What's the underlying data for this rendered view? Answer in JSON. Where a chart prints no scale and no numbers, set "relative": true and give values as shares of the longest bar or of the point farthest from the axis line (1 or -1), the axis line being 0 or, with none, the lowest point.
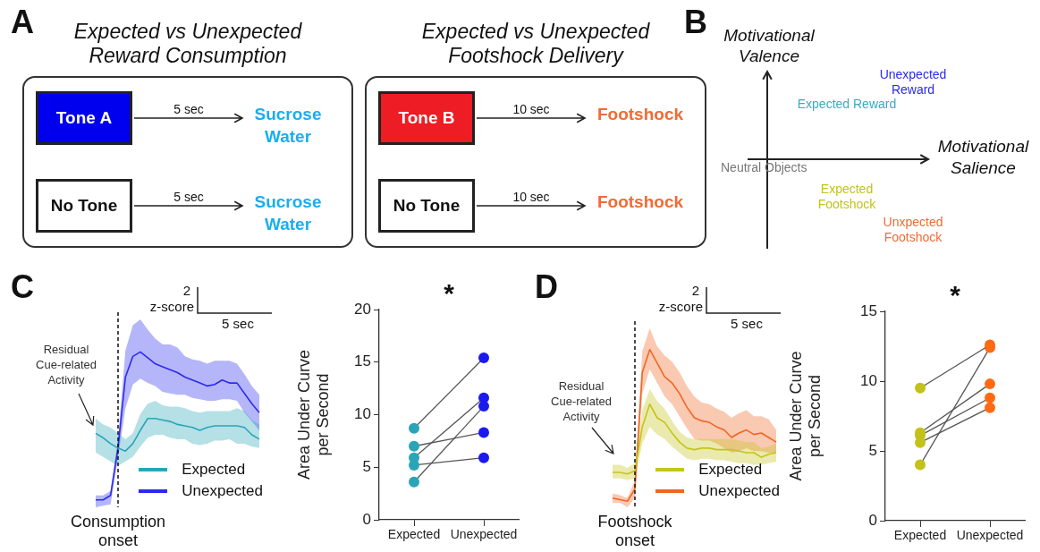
{
  "chart_data": [
    {
      "type": "other",
      "title": "Expected vs Unexpected Reward Consumption",
      "colors": [
        "#0000ee",
        "#ffffff"
      ],
      "annotations": [
        "A",
        "Tone A",
        "5 sec",
        "Sucrose Water",
        "No Tone",
        "5 sec",
        "Sucrose Water"
      ]
    },
    {
      "type": "other",
      "title": "Expected vs Unexpected Footshock Delivery",
      "colors": [
        "#ee1c24",
        "#ffffff"
      ],
      "annotations": [
        "Tone B",
        "10 sec",
        "Footshock",
        "No Tone",
        "10 sec",
        "Footshock"
      ]
    },
    {
      "type": "other",
      "xlabel": "Motivational Salience",
      "ylabel": "Motivational Valence",
      "annotations": [
        "B",
        "Unexpected Reward",
        "Expected Reward",
        "Neutral Objects",
        "Expected Footshock",
        "Unxpected Footshock"
      ]
    },
    {
      "type": "line",
      "relative": true,
      "legend": "bottom right",
      "categories": [
        null,
        null,
        null,
        null,
        null,
        null,
        null,
        null,
        null,
        null,
        null,
        null,
        null,
        null,
        null,
        null,
        null,
        null,
        null,
        null,
        null,
        null,
        null
      ],
      "annotations": [
        "C",
        "2",
        "z-score",
        "5 sec",
        "Residual Cue-related Activity",
        "Consumption onset"
      ],
      "series": [
        {
          "name": "Expected",
          "color": "#2aa5b8",
          "values": [
            0.45,
            0.42,
            0.38,
            0.35,
            0.33,
            0.38,
            0.47,
            0.55,
            0.55,
            0.54,
            0.53,
            0.51,
            0.5,
            0.49,
            0.47,
            0.49,
            0.5,
            0.5,
            0.5,
            0.5,
            0.49,
            0.44,
            0.41
          ],
          "upper": [
            0.55,
            0.51,
            0.49,
            0.45,
            0.41,
            0.45,
            0.58,
            0.65,
            0.67,
            0.64,
            0.63,
            0.63,
            0.62,
            0.6,
            0.59,
            0.6,
            0.6,
            0.6,
            0.6,
            0.62,
            0.6,
            0.54,
            0.51
          ],
          "lower": [
            0.32,
            0.29,
            0.26,
            0.23,
            0.26,
            0.29,
            0.36,
            0.42,
            0.44,
            0.44,
            0.42,
            0.41,
            0.41,
            0.38,
            0.37,
            0.38,
            0.4,
            0.4,
            0.41,
            0.38,
            0.38,
            0.36,
            0.35
          ]
        },
        {
          "name": "Unexpected",
          "color": "#2b2bee",
          "values": [
            0,
            0,
            0.03,
            0.35,
            0.83,
            0.97,
            1,
            0.96,
            0.92,
            0.9,
            0.88,
            0.86,
            0.83,
            0.81,
            0.79,
            0.77,
            0.78,
            0.81,
            0.79,
            0.79,
            0.72,
            0.65,
            0.59
          ],
          "upper": [
            0.03,
            0.03,
            0.06,
            0.41,
            1.01,
            1.18,
            1.22,
            1.15,
            1.09,
            1.05,
            1.05,
            1.03,
            0.97,
            0.95,
            0.94,
            0.92,
            0.94,
            0.94,
            0.94,
            0.92,
            0.85,
            0.77,
            0.71
          ],
          "lower": [
            -0.05,
            -0.04,
            -0.03,
            0.28,
            0.62,
            0.78,
            0.82,
            0.79,
            0.77,
            0.73,
            0.72,
            0.71,
            0.71,
            0.69,
            0.68,
            0.67,
            0.67,
            0.68,
            0.68,
            0.67,
            0.59,
            0.53,
            0.47
          ]
        }
      ]
    },
    {
      "type": "line",
      "categories": [
        "Expected",
        "Unexpected"
      ],
      "ylabel": "Area Under Curve per Second",
      "ylim": [
        0,
        20
      ],
      "yticks": [
        0,
        5,
        10,
        15,
        20
      ],
      "marker": "circle",
      "annotations": [
        "*"
      ],
      "series": [
        {
          "color": "#555555",
          "colors": [
            "#2aa5b8",
            "#1a1aee"
          ],
          "values": [
            8.7,
            15.4
          ]
        },
        {
          "color": "#555555",
          "colors": [
            "#2aa5b8",
            "#1a1aee"
          ],
          "values": [
            7.0,
            8.3
          ]
        },
        {
          "color": "#555555",
          "colors": [
            "#2aa5b8",
            "#1a1aee"
          ],
          "values": [
            5.9,
            11.6
          ]
        },
        {
          "color": "#555555",
          "colors": [
            "#2aa5b8",
            "#1a1aee"
          ],
          "values": [
            5.2,
            5.9
          ]
        },
        {
          "color": "#555555",
          "colors": [
            "#2aa5b8",
            "#1a1aee"
          ],
          "values": [
            3.6,
            10.8
          ]
        }
      ]
    },
    {
      "type": "line",
      "relative": true,
      "legend": "bottom right",
      "categories": [
        null,
        null,
        null,
        null,
        null,
        null,
        null,
        null,
        null,
        null,
        null,
        null,
        null,
        null,
        null,
        null,
        null,
        null,
        null,
        null,
        null,
        null,
        null
      ],
      "annotations": [
        "D",
        "2",
        "z-score",
        "5 sec",
        "Residual Cue-related Activity",
        "Footshock onset"
      ],
      "series": [
        {
          "name": "Expected",
          "color": "#c4c41a",
          "values": [
            0.19,
            0.19,
            0.18,
            0.2,
            0.49,
            0.64,
            0.55,
            0.52,
            0.45,
            0.39,
            0.35,
            0.34,
            0.35,
            0.35,
            0.34,
            0.34,
            0.34,
            0.33,
            0.32,
            0.32,
            0.29,
            0.31,
            0.32
          ],
          "upper": [
            0.24,
            0.24,
            0.22,
            0.25,
            0.6,
            0.74,
            0.66,
            0.61,
            0.53,
            0.46,
            0.42,
            0.41,
            0.41,
            0.41,
            0.41,
            0.41,
            0.41,
            0.4,
            0.39,
            0.39,
            0.35,
            0.36,
            0.38
          ],
          "lower": [
            0.15,
            0.15,
            0.14,
            0.15,
            0.38,
            0.49,
            0.44,
            0.41,
            0.36,
            0.32,
            0.28,
            0.27,
            0.28,
            0.28,
            0.27,
            0.27,
            0.26,
            0.25,
            0.25,
            0.24,
            0.24,
            0.25,
            0.26
          ]
        },
        {
          "name": "Unexpected",
          "color": "#f26522",
          "values": [
            0.02,
            0.01,
            0,
            0.08,
            0.85,
            1,
            0.91,
            0.82,
            0.78,
            0.71,
            0.62,
            0.55,
            0.53,
            0.52,
            0.49,
            0.47,
            0.42,
            0.45,
            0.47,
            0.44,
            0.45,
            0.42,
            0.39
          ],
          "upper": [
            0.05,
            0.04,
            0.02,
            0.14,
            0.99,
            1.14,
            1.02,
            0.96,
            0.92,
            0.85,
            0.76,
            0.69,
            0.65,
            0.64,
            0.61,
            0.59,
            0.55,
            0.58,
            0.6,
            0.56,
            0.56,
            0.54,
            0.47
          ],
          "lower": [
            -0.01,
            -0.01,
            -0.04,
            0.02,
            0.71,
            0.87,
            0.78,
            0.69,
            0.64,
            0.56,
            0.48,
            0.41,
            0.4,
            0.4,
            0.38,
            0.35,
            0.32,
            0.33,
            0.35,
            0.33,
            0.33,
            0.32,
            0.32
          ]
        }
      ]
    },
    {
      "type": "line",
      "categories": [
        "Expected",
        "Unexpected"
      ],
      "ylabel": "Area Under Curve per Second",
      "ylim": [
        0,
        15
      ],
      "yticks": [
        0,
        5,
        10,
        15
      ],
      "marker": "circle",
      "annotations": [
        "*"
      ],
      "series": [
        {
          "color": "#555555",
          "colors": [
            "#c2c21a",
            "#ff6a13"
          ],
          "values": [
            9.5,
            12.6
          ]
        },
        {
          "color": "#555555",
          "colors": [
            "#c2c21a",
            "#ff6a13"
          ],
          "values": [
            6.3,
            9.8
          ]
        },
        {
          "color": "#555555",
          "colors": [
            "#c2c21a",
            "#ff6a13"
          ],
          "values": [
            6.1,
            8.8
          ]
        },
        {
          "color": "#555555",
          "colors": [
            "#c2c21a",
            "#ff6a13"
          ],
          "values": [
            5.6,
            8.1
          ]
        },
        {
          "color": "#555555",
          "colors": [
            "#c2c21a",
            "#ff6a13"
          ],
          "values": [
            4.0,
            12.4
          ]
        }
      ]
    }
  ]
}
